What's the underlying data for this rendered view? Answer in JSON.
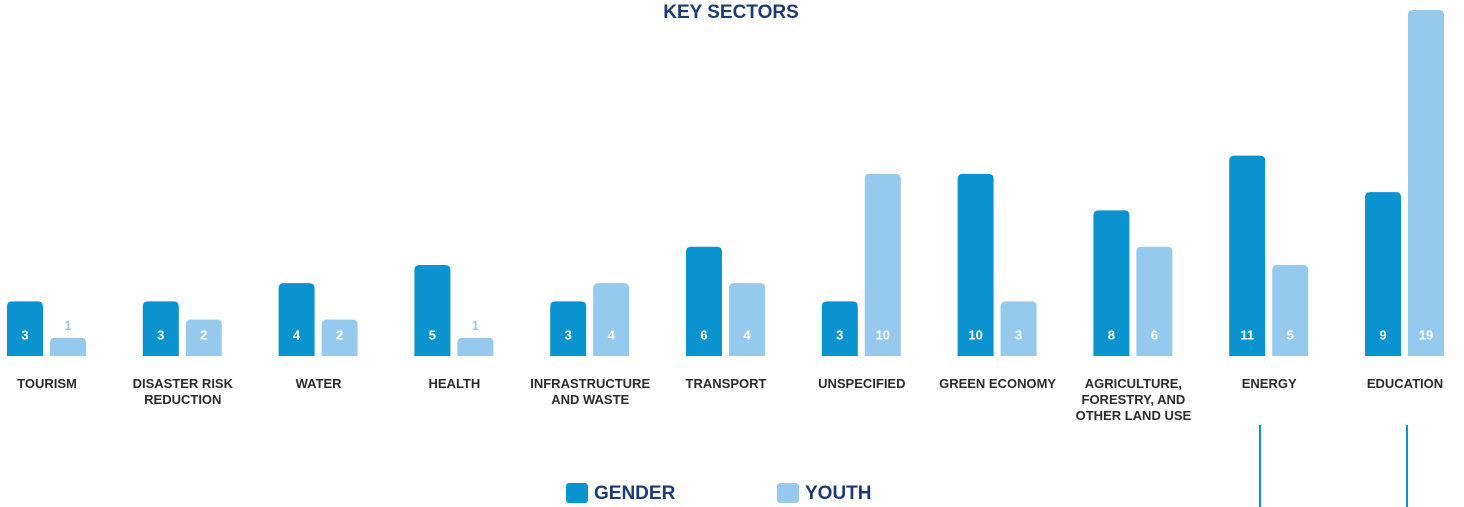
{
  "chart_data": {
    "type": "bar",
    "title": "KEY SECTORS",
    "categories": [
      "TOURISM",
      "DISASTER RISK REDUCTION",
      "WATER",
      "HEALTH",
      "INFRASTRUCTURE AND WASTE",
      "TRANSPORT",
      "UNSPECIFIED",
      "GREEN ECONOMY",
      "AGRICULTURE, FORESTRY, AND OTHER LAND USE",
      "ENERGY",
      "EDUCATION"
    ],
    "series": [
      {
        "name": "GENDER",
        "color": "#0a93cf",
        "values": [
          3,
          3,
          4,
          5,
          3,
          6,
          3,
          10,
          8,
          11,
          9
        ]
      },
      {
        "name": "YOUTH",
        "color": "#96c9ee",
        "values": [
          1,
          2,
          2,
          1,
          4,
          4,
          10,
          3,
          6,
          5,
          19
        ]
      }
    ]
  }
}
